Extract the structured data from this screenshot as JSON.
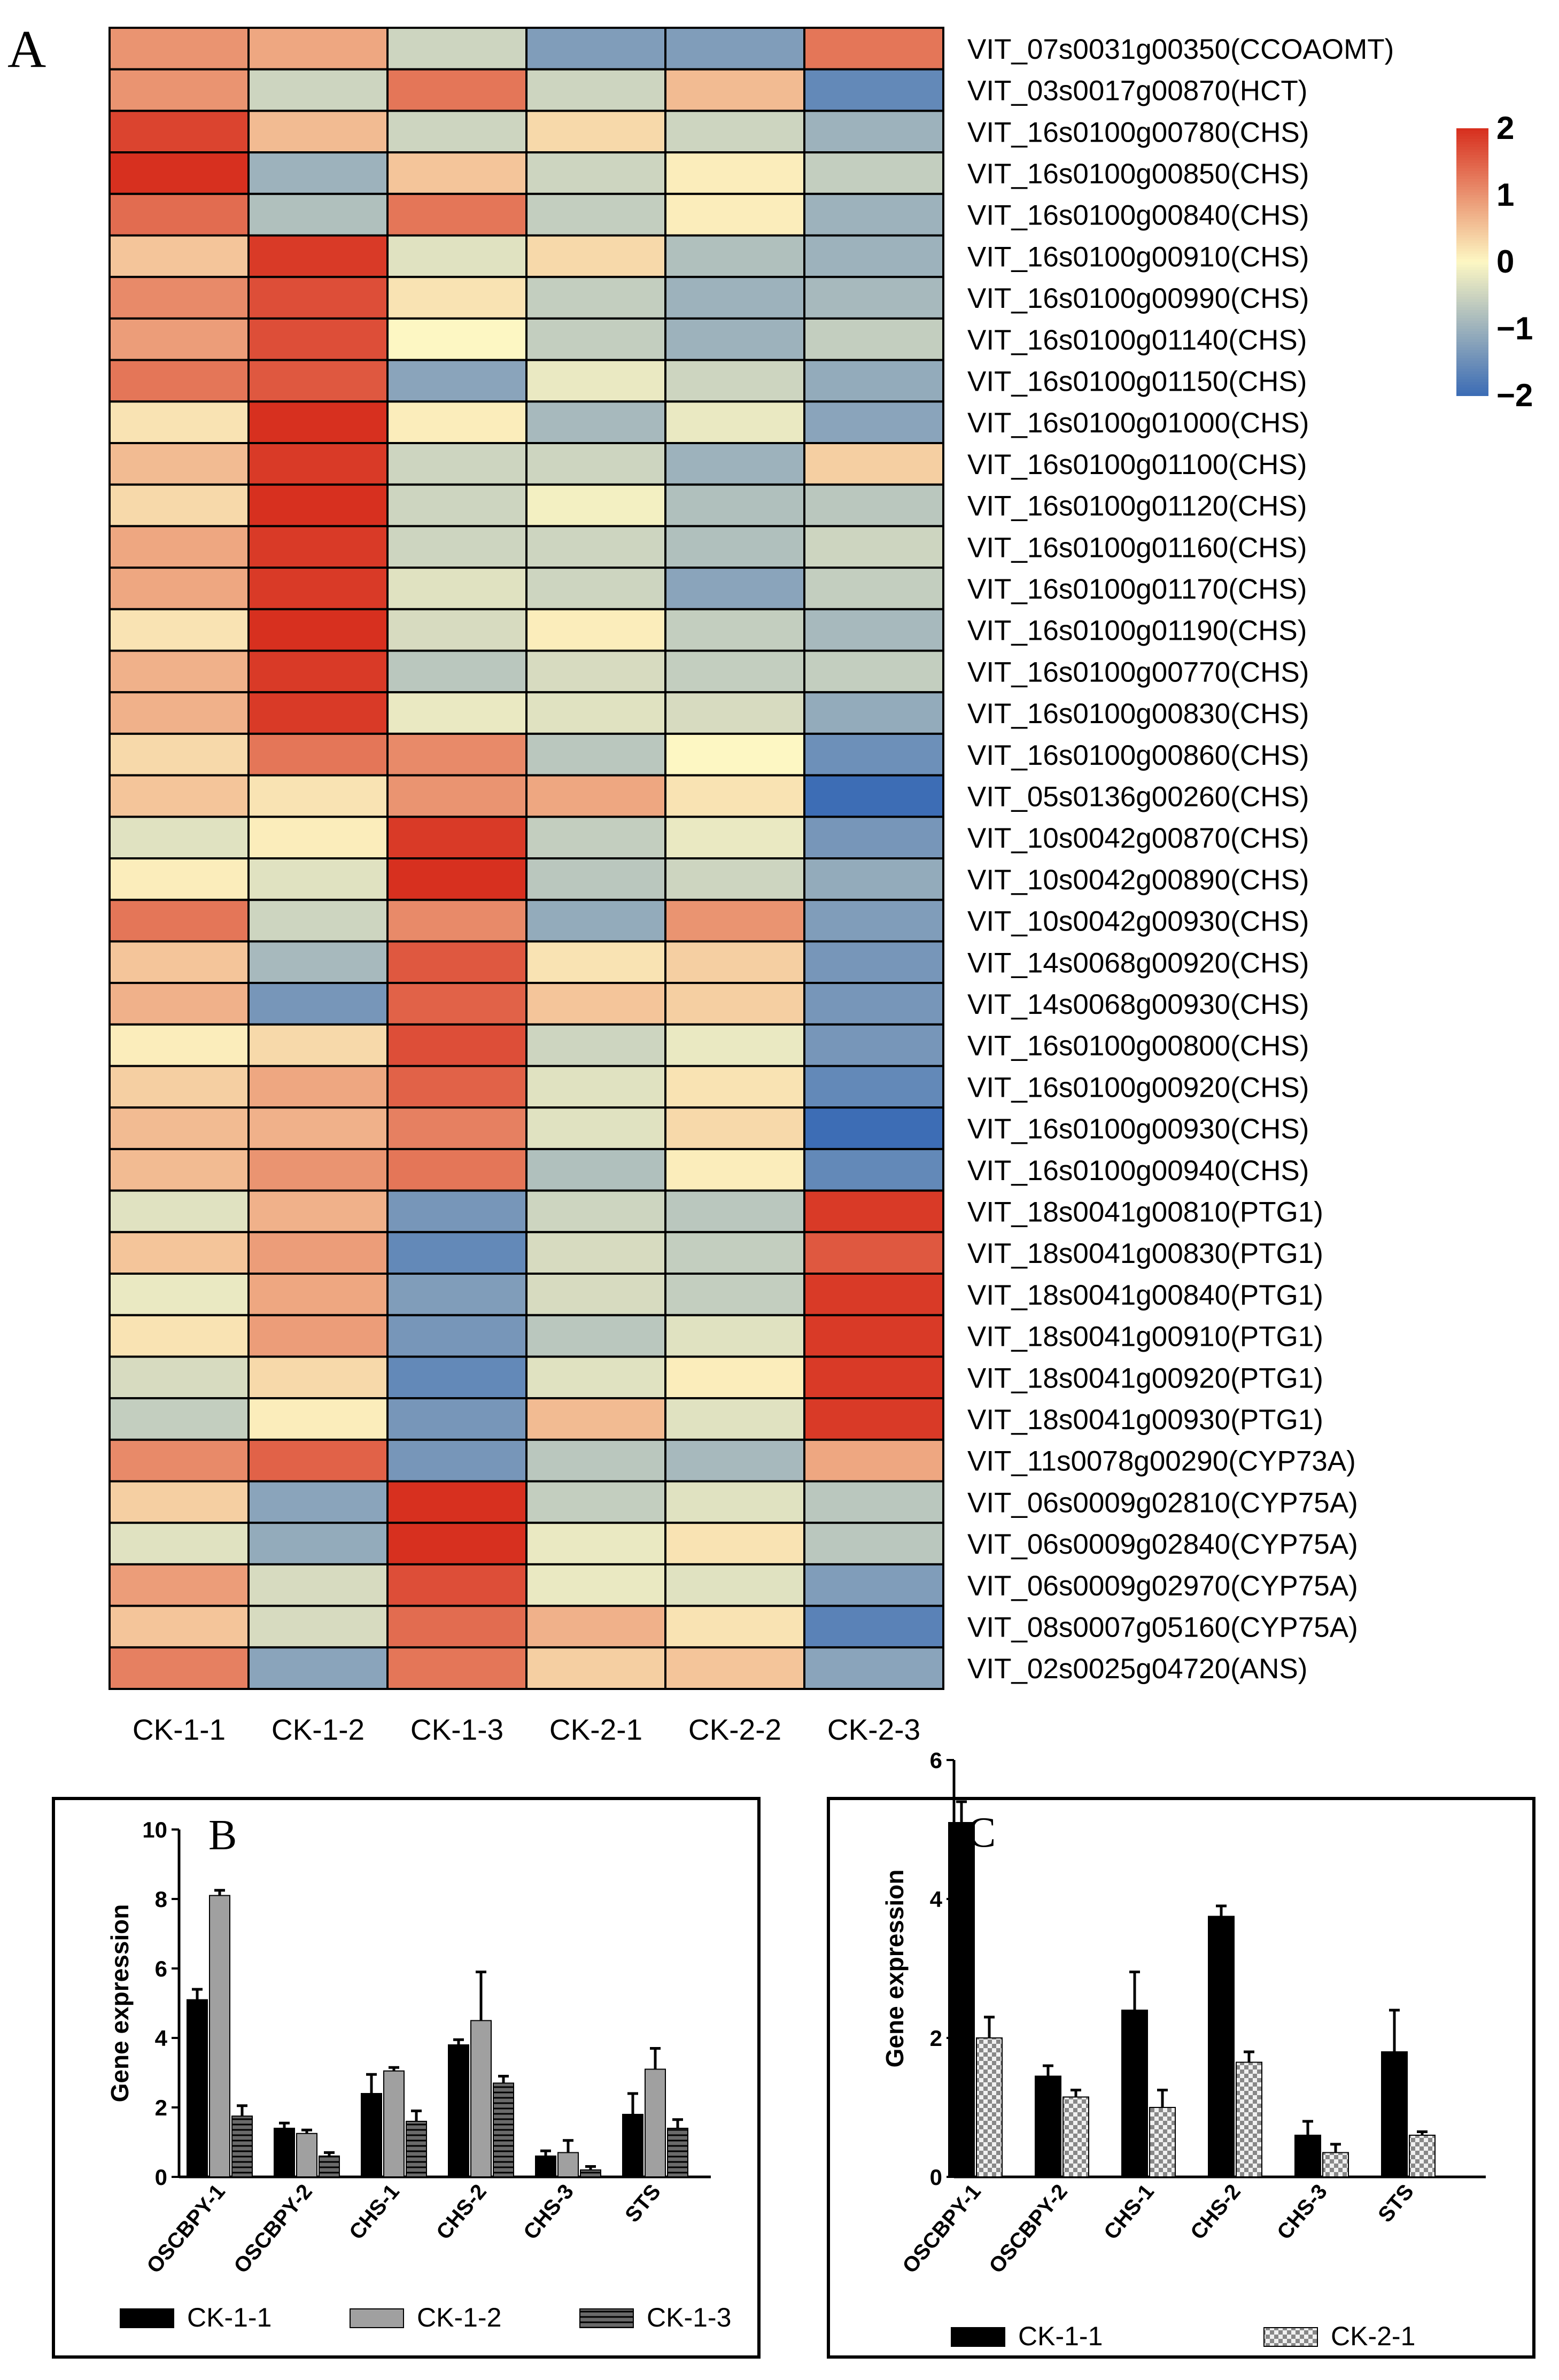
{
  "chart_data": [
    {
      "panel": "A",
      "type": "heatmap",
      "columns": [
        "CK-1-1",
        "CK-1-2",
        "CK-1-3",
        "CK-2-1",
        "CK-2-2",
        "CK-2-3"
      ],
      "rows": [
        "VIT_07s0031g00350(CCOAOMT)",
        "VIT_03s0017g00870(HCT)",
        "VIT_16s0100g00780(CHS)",
        "VIT_16s0100g00850(CHS)",
        "VIT_16s0100g00840(CHS)",
        "VIT_16s0100g00910(CHS)",
        "VIT_16s0100g00990(CHS)",
        "VIT_16s0100g01140(CHS)",
        "VIT_16s0100g01150(CHS)",
        "VIT_16s0100g01000(CHS)",
        "VIT_16s0100g01100(CHS)",
        "VIT_16s0100g01120(CHS)",
        "VIT_16s0100g01160(CHS)",
        "VIT_16s0100g01170(CHS)",
        "VIT_16s0100g01190(CHS)",
        "VIT_16s0100g00770(CHS)",
        "VIT_16s0100g00830(CHS)",
        "VIT_16s0100g00860(CHS)",
        "VIT_05s0136g00260(CHS)",
        "VIT_10s0042g00870(CHS)",
        "VIT_10s0042g00890(CHS)",
        "VIT_10s0042g00930(CHS)",
        "VIT_14s0068g00920(CHS)",
        "VIT_14s0068g00930(CHS)",
        "VIT_16s0100g00800(CHS)",
        "VIT_16s0100g00920(CHS)",
        "VIT_16s0100g00930(CHS)",
        "VIT_16s0100g00940(CHS)",
        "VIT_18s0041g00810(PTG1)",
        "VIT_18s0041g00830(PTG1)",
        "VIT_18s0041g00840(PTG1)",
        "VIT_18s0041g00910(PTG1)",
        "VIT_18s0041g00920(PTG1)",
        "VIT_18s0041g00930(PTG1)",
        "VIT_11s0078g00290(CYP73A)",
        "VIT_06s0009g02810(CYP75A)",
        "VIT_06s0009g02840(CYP75A)",
        "VIT_06s0009g02970(CYP75A)",
        "VIT_08s0007g05160(CYP75A)",
        "VIT_02s0025g04720(ANS)"
      ],
      "values": [
        [
          1.0,
          0.8,
          -0.5,
          -1.3,
          -1.3,
          1.3
        ],
        [
          1.0,
          -0.5,
          1.3,
          -0.5,
          0.6,
          -1.6
        ],
        [
          1.8,
          0.6,
          -0.5,
          0.3,
          -0.5,
          -1.0
        ],
        [
          2.0,
          -1.0,
          0.5,
          -0.5,
          0.1,
          -0.6
        ],
        [
          1.4,
          -0.8,
          1.3,
          -0.6,
          0.1,
          -1.0
        ],
        [
          0.5,
          1.9,
          -0.3,
          0.3,
          -0.8,
          -1.0
        ],
        [
          1.1,
          1.7,
          0.2,
          -0.6,
          -1.0,
          -0.9
        ],
        [
          0.9,
          1.7,
          0.0,
          -0.6,
          -1.0,
          -0.6
        ],
        [
          1.3,
          1.6,
          -1.2,
          -0.2,
          -0.5,
          -1.1
        ],
        [
          0.2,
          2.0,
          0.1,
          -0.9,
          -0.2,
          -1.2
        ],
        [
          0.6,
          1.9,
          -0.5,
          -0.5,
          -1.0,
          0.4
        ],
        [
          0.3,
          2.0,
          -0.5,
          -0.1,
          -0.8,
          -0.7
        ],
        [
          0.8,
          1.9,
          -0.5,
          -0.5,
          -0.8,
          -0.5
        ],
        [
          0.8,
          1.9,
          -0.3,
          -0.5,
          -1.2,
          -0.6
        ],
        [
          0.2,
          2.0,
          -0.4,
          0.1,
          -0.6,
          -0.9
        ],
        [
          0.7,
          1.9,
          -0.7,
          -0.4,
          -0.6,
          -0.6
        ],
        [
          0.7,
          1.9,
          -0.2,
          -0.3,
          -0.4,
          -1.1
        ],
        [
          0.3,
          1.3,
          1.1,
          -0.7,
          0.0,
          -1.5
        ],
        [
          0.5,
          0.2,
          1.0,
          0.8,
          0.2,
          -2.0
        ],
        [
          -0.3,
          0.1,
          1.9,
          -0.6,
          -0.2,
          -1.4
        ],
        [
          0.1,
          -0.3,
          2.0,
          -0.7,
          -0.5,
          -1.1
        ],
        [
          1.3,
          -0.5,
          1.1,
          -1.1,
          1.0,
          -1.3
        ],
        [
          0.5,
          -0.9,
          1.6,
          0.2,
          0.4,
          -1.4
        ],
        [
          0.7,
          -1.4,
          1.5,
          0.5,
          0.4,
          -1.4
        ],
        [
          0.1,
          0.3,
          1.7,
          -0.5,
          -0.2,
          -1.4
        ],
        [
          0.4,
          0.8,
          1.5,
          -0.3,
          0.2,
          -1.6
        ],
        [
          0.6,
          0.7,
          1.2,
          -0.3,
          0.3,
          -2.0
        ],
        [
          0.6,
          1.0,
          1.3,
          -0.8,
          0.1,
          -1.6
        ],
        [
          -0.3,
          0.7,
          -1.4,
          -0.5,
          -0.7,
          1.9
        ],
        [
          0.5,
          0.9,
          -1.6,
          -0.4,
          -0.6,
          1.6
        ],
        [
          -0.2,
          0.8,
          -1.3,
          -0.4,
          -0.6,
          1.9
        ],
        [
          0.2,
          0.9,
          -1.4,
          -0.7,
          -0.3,
          1.9
        ],
        [
          -0.4,
          0.3,
          -1.6,
          -0.3,
          0.1,
          1.9
        ],
        [
          -0.6,
          0.1,
          -1.4,
          0.6,
          -0.3,
          1.9
        ],
        [
          1.1,
          1.5,
          -1.4,
          -0.7,
          -0.9,
          0.8
        ],
        [
          0.4,
          -1.2,
          2.0,
          -0.6,
          -0.3,
          -0.7
        ],
        [
          -0.3,
          -1.1,
          2.0,
          -0.2,
          0.2,
          -0.7
        ],
        [
          0.9,
          -0.4,
          1.7,
          -0.2,
          -0.3,
          -1.3
        ],
        [
          0.5,
          -0.4,
          1.4,
          0.7,
          0.2,
          -1.7
        ],
        [
          1.2,
          -1.2,
          1.3,
          0.4,
          0.5,
          -1.2
        ]
      ],
      "colorbar": {
        "ticks": [
          "2",
          "1",
          "0",
          "−1",
          "−2"
        ],
        "range": [
          -2,
          2
        ]
      },
      "colors": {
        "low": "#3d6db5",
        "mid": "#fdf7c3",
        "high": "#d7301f"
      }
    },
    {
      "panel": "B",
      "type": "bar",
      "ylabel": "Gene expression",
      "ylim": [
        0,
        10
      ],
      "yticks": [
        "0",
        "2",
        "4",
        "6",
        "8",
        "10"
      ],
      "categories": [
        "OSCBPY-1",
        "OSCBPY-2",
        "CHS-1",
        "CHS-2",
        "CHS-3",
        "STS"
      ],
      "series": [
        {
          "name": "CK-1-1",
          "values": [
            5.1,
            1.4,
            2.4,
            3.8,
            0.6,
            1.8
          ],
          "errors": [
            0.3,
            0.15,
            0.55,
            0.15,
            0.15,
            0.6
          ],
          "fill": "#000000"
        },
        {
          "name": "CK-1-2",
          "values": [
            8.1,
            1.25,
            3.05,
            4.5,
            0.7,
            3.1
          ],
          "errors": [
            0.15,
            0.1,
            0.1,
            1.4,
            0.35,
            0.6
          ],
          "fill": "#a0a0a0"
        },
        {
          "name": "CK-1-3",
          "values": [
            1.75,
            0.6,
            1.6,
            2.7,
            0.2,
            1.4
          ],
          "errors": [
            0.3,
            0.1,
            0.3,
            0.2,
            0.1,
            0.25
          ],
          "fill": "#5c5c5c"
        }
      ]
    },
    {
      "panel": "C",
      "type": "bar",
      "ylabel": "Gene expression",
      "ylim": [
        0,
        6
      ],
      "yticks": [
        "0",
        "2",
        "4",
        "6"
      ],
      "categories": [
        "OSCBPY-1",
        "OSCBPY-2",
        "CHS-1",
        "CHS-2",
        "CHS-3",
        "STS"
      ],
      "series": [
        {
          "name": "CK-1-1",
          "values": [
            5.1,
            1.45,
            2.4,
            3.75,
            0.6,
            1.8
          ],
          "errors": [
            0.3,
            0.15,
            0.55,
            0.15,
            0.2,
            0.6
          ],
          "fill": "#000000"
        },
        {
          "name": "CK-2-1",
          "values": [
            2.0,
            1.15,
            1.0,
            1.65,
            0.35,
            0.6
          ],
          "errors": [
            0.3,
            0.1,
            0.25,
            0.15,
            0.12,
            0.05
          ],
          "fill": "#d8d8d8"
        }
      ]
    }
  ]
}
